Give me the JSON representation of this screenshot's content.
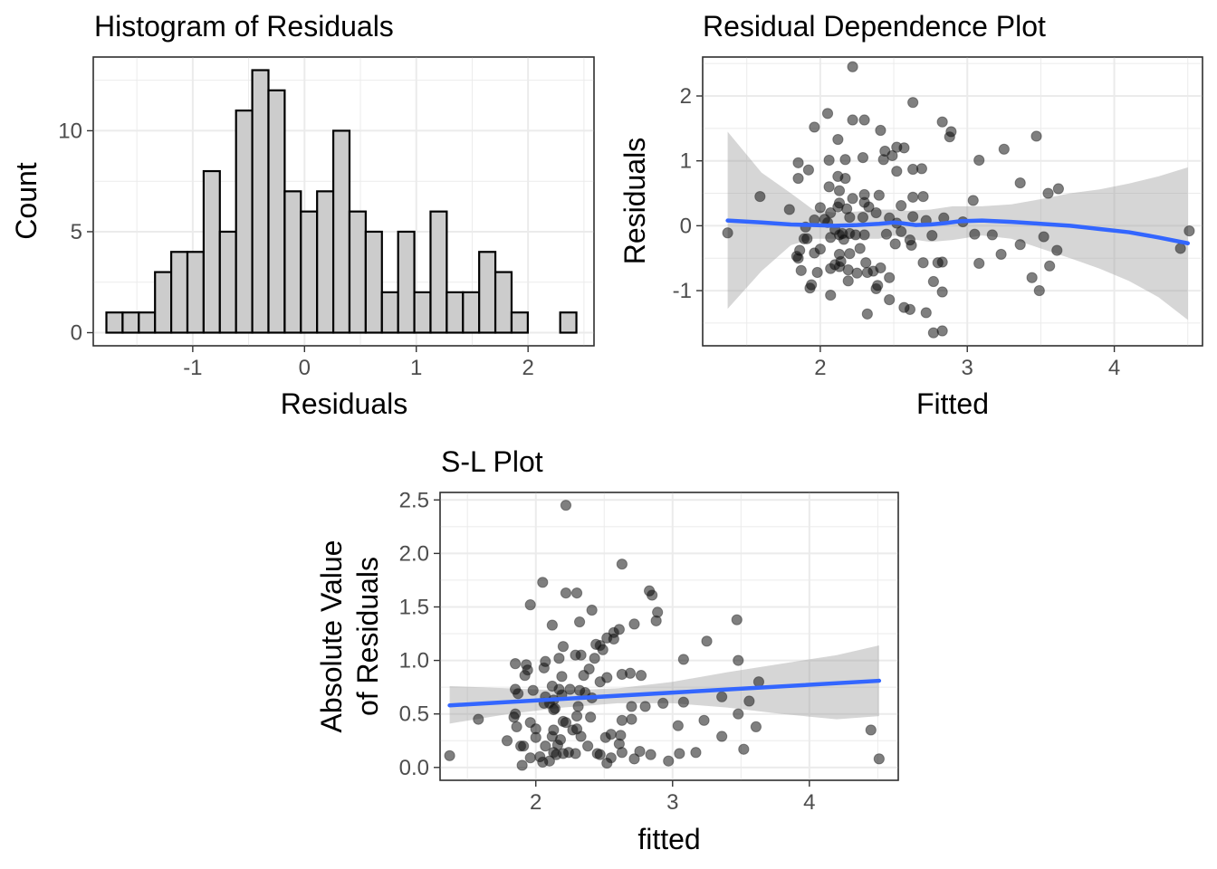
{
  "chart_data": [
    {
      "type": "bar",
      "title": "Histogram of Residuals",
      "xlabel": "Residuals",
      "ylabel": "Count",
      "xlim": [
        -1.89,
        2.59
      ],
      "ylim": [
        -0.65,
        13.65
      ],
      "xticks": [
        -1,
        0,
        1,
        2
      ],
      "yticks": [
        0,
        5,
        10
      ],
      "grid": true,
      "bin_width": 0.145,
      "bin_centers": [
        -1.7,
        -1.555,
        -1.41,
        -1.265,
        -1.12,
        -0.975,
        -0.83,
        -0.685,
        -0.54,
        -0.395,
        -0.25,
        -0.105,
        0.04,
        0.185,
        0.33,
        0.475,
        0.62,
        0.765,
        0.91,
        1.055,
        1.2,
        1.345,
        1.49,
        1.635,
        1.78,
        1.925,
        2.07,
        2.215,
        2.36
      ],
      "counts": [
        1,
        1,
        1,
        3,
        4,
        4,
        8,
        5,
        11,
        13,
        12,
        7,
        6,
        7,
        10,
        6,
        5,
        2,
        5,
        2,
        6,
        2,
        2,
        4,
        3,
        1,
        0,
        0,
        1
      ]
    },
    {
      "type": "scatter",
      "title": "Residual Dependence Plot",
      "xlabel": "Fitted",
      "ylabel": "Residuals",
      "xlim": [
        1.2,
        4.6
      ],
      "ylim": [
        -1.85,
        2.6
      ],
      "xticks": [
        2,
        3,
        4
      ],
      "yticks": [
        -1,
        0,
        1,
        2
      ],
      "grid": true,
      "points": [
        [
          2.22,
          2.45
        ],
        [
          2.63,
          1.9
        ],
        [
          2.05,
          1.73
        ],
        [
          2.83,
          1.6
        ],
        [
          2.22,
          1.63
        ],
        [
          2.3,
          1.63
        ],
        [
          1.96,
          1.52
        ],
        [
          2.89,
          1.45
        ],
        [
          2.88,
          1.37
        ],
        [
          2.12,
          1.33
        ],
        [
          2.41,
          1.47
        ],
        [
          3.47,
          1.38
        ],
        [
          2.52,
          1.21
        ],
        [
          2.57,
          1.2
        ],
        [
          2.49,
          1.08
        ],
        [
          3.25,
          1.18
        ],
        [
          2.44,
          1.15
        ],
        [
          2.17,
          1.02
        ],
        [
          2.06,
          1.01
        ],
        [
          2.29,
          1.05
        ],
        [
          1.85,
          0.97
        ],
        [
          2.63,
          0.87
        ],
        [
          1.92,
          0.86
        ],
        [
          2.43,
          1.02
        ],
        [
          3.08,
          1.01
        ],
        [
          2.52,
          0.84
        ],
        [
          2.69,
          0.88
        ],
        [
          2.12,
          0.76
        ],
        [
          2.17,
          0.73
        ],
        [
          1.85,
          0.73
        ],
        [
          3.36,
          0.66
        ],
        [
          2.06,
          0.6
        ],
        [
          3.62,
          0.57
        ],
        [
          2.13,
          0.54
        ],
        [
          2.3,
          0.48
        ],
        [
          3.55,
          0.5
        ],
        [
          1.59,
          0.45
        ],
        [
          2.4,
          0.47
        ],
        [
          2.63,
          0.44
        ],
        [
          2.7,
          0.45
        ],
        [
          2.22,
          0.42
        ],
        [
          2.13,
          0.35
        ],
        [
          3.04,
          0.39
        ],
        [
          2.3,
          0.36
        ],
        [
          2.33,
          0.29
        ],
        [
          2.55,
          0.31
        ],
        [
          2.12,
          0.29
        ],
        [
          2.18,
          0.26
        ],
        [
          2.0,
          0.28
        ],
        [
          1.79,
          0.25
        ],
        [
          2.07,
          0.2
        ],
        [
          2.38,
          0.2
        ],
        [
          2.29,
          0.13
        ],
        [
          2.2,
          0.13
        ],
        [
          2.47,
          0.12
        ],
        [
          2.97,
          0.06
        ],
        [
          2.63,
          0.14
        ],
        [
          2.72,
          0.08
        ],
        [
          1.96,
          0.09
        ],
        [
          2.03,
          0.1
        ],
        [
          2.84,
          0.12
        ],
        [
          2.05,
          0.05
        ],
        [
          2.52,
          0.04
        ],
        [
          1.9,
          -0.02
        ],
        [
          2.1,
          -0.06
        ],
        [
          2.55,
          -0.09
        ],
        [
          2.15,
          -0.12
        ],
        [
          2.24,
          -0.14
        ],
        [
          2.3,
          -0.14
        ],
        [
          3.17,
          -0.14
        ],
        [
          2.13,
          -0.14
        ],
        [
          3.52,
          -0.17
        ],
        [
          2.76,
          -0.15
        ],
        [
          3.05,
          -0.13
        ],
        [
          2.45,
          -0.13
        ],
        [
          2.2,
          -0.12
        ],
        [
          1.91,
          -0.2
        ],
        [
          2.07,
          -0.18
        ],
        [
          2.16,
          -0.21
        ],
        [
          1.89,
          -0.2
        ],
        [
          2.61,
          -0.22
        ],
        [
          2.51,
          -0.28
        ],
        [
          3.36,
          -0.29
        ],
        [
          2.62,
          -0.3
        ],
        [
          3.61,
          -0.38
        ],
        [
          4.45,
          -0.35
        ],
        [
          4.51,
          -0.08
        ],
        [
          1.37,
          -0.11
        ],
        [
          1.86,
          -0.38
        ],
        [
          2.0,
          -0.36
        ],
        [
          1.96,
          -0.42
        ],
        [
          2.27,
          -0.35
        ],
        [
          2.2,
          -0.43
        ],
        [
          3.23,
          -0.44
        ],
        [
          1.84,
          -0.47
        ],
        [
          2.13,
          -0.44
        ],
        [
          1.85,
          -0.5
        ],
        [
          2.14,
          -0.55
        ],
        [
          2.1,
          -0.6
        ],
        [
          2.31,
          -0.57
        ],
        [
          2.7,
          -0.57
        ],
        [
          2.8,
          -0.57
        ],
        [
          2.83,
          -0.56
        ],
        [
          3.08,
          -0.58
        ],
        [
          3.56,
          -0.62
        ],
        [
          2.13,
          -0.63
        ],
        [
          1.98,
          -0.72
        ],
        [
          2.07,
          -0.66
        ],
        [
          2.25,
          -0.73
        ],
        [
          2.32,
          -0.72
        ],
        [
          2.41,
          -0.65
        ],
        [
          1.87,
          -0.69
        ],
        [
          2.19,
          -0.68
        ],
        [
          2.36,
          -0.7
        ],
        [
          2.47,
          -0.8
        ],
        [
          2.19,
          -0.85
        ],
        [
          1.94,
          -0.91
        ],
        [
          1.93,
          -0.96
        ],
        [
          2.39,
          -0.92
        ],
        [
          2.77,
          -0.86
        ],
        [
          2.38,
          -0.97
        ],
        [
          3.44,
          -0.8
        ],
        [
          3.49,
          -1.0
        ],
        [
          2.07,
          -1.07
        ],
        [
          2.83,
          -1.02
        ],
        [
          2.47,
          -1.14
        ],
        [
          2.57,
          -1.26
        ],
        [
          2.61,
          -1.29
        ],
        [
          2.72,
          -1.34
        ],
        [
          2.32,
          -1.36
        ],
        [
          2.83,
          -1.62
        ],
        [
          2.77,
          -1.65
        ]
      ],
      "smooth": [
        [
          1.37,
          0.08
        ],
        [
          1.6,
          0.05
        ],
        [
          1.8,
          0.02
        ],
        [
          1.95,
          0.01
        ],
        [
          2.1,
          0.0
        ],
        [
          2.25,
          0.01
        ],
        [
          2.4,
          0.03
        ],
        [
          2.45,
          0.04
        ],
        [
          2.5,
          0.05
        ],
        [
          2.55,
          0.04
        ],
        [
          2.65,
          0.01
        ],
        [
          2.75,
          0.02
        ],
        [
          2.85,
          0.04
        ],
        [
          2.95,
          0.07
        ],
        [
          3.1,
          0.08
        ],
        [
          3.3,
          0.06
        ],
        [
          3.5,
          0.03
        ],
        [
          3.7,
          0.0
        ],
        [
          3.9,
          -0.05
        ],
        [
          4.1,
          -0.1
        ],
        [
          4.3,
          -0.18
        ],
        [
          4.5,
          -0.27
        ]
      ],
      "smooth_band": [
        [
          1.37,
          -1.28,
          1.45
        ],
        [
          1.6,
          -0.7,
          0.82
        ],
        [
          1.8,
          -0.3,
          0.5
        ],
        [
          1.95,
          -0.2,
          0.25
        ],
        [
          2.1,
          -0.2,
          0.2
        ],
        [
          2.25,
          -0.2,
          0.22
        ],
        [
          2.4,
          -0.2,
          0.25
        ],
        [
          2.5,
          -0.15,
          0.25
        ],
        [
          2.6,
          -0.2,
          0.23
        ],
        [
          2.75,
          -0.25,
          0.25
        ],
        [
          2.9,
          -0.22,
          0.3
        ],
        [
          3.1,
          -0.15,
          0.3
        ],
        [
          3.3,
          -0.2,
          0.33
        ],
        [
          3.5,
          -0.35,
          0.41
        ],
        [
          3.7,
          -0.5,
          0.5
        ],
        [
          3.9,
          -0.66,
          0.56
        ],
        [
          4.1,
          -0.85,
          0.65
        ],
        [
          4.3,
          -1.1,
          0.76
        ],
        [
          4.5,
          -1.45,
          0.9
        ]
      ]
    },
    {
      "type": "scatter",
      "title": "S-L Plot",
      "xlabel": "fitted",
      "ylabel": [
        "Absolute Value",
        "of Residuals"
      ],
      "xlim": [
        1.3,
        4.65
      ],
      "ylim": [
        -0.12,
        2.57
      ],
      "xticks": [
        2,
        3,
        4
      ],
      "yticks": [
        0.0,
        0.5,
        1.0,
        1.5,
        2.0,
        2.5
      ],
      "ytick_labels": [
        "0.0",
        "0.5",
        "1.0",
        "1.5",
        "2.0",
        "2.5"
      ],
      "grid": true,
      "points": [
        [
          2.22,
          2.45
        ],
        [
          2.63,
          1.9
        ],
        [
          2.05,
          1.73
        ],
        [
          2.83,
          1.65
        ],
        [
          2.85,
          1.61
        ],
        [
          2.22,
          1.63
        ],
        [
          2.3,
          1.63
        ],
        [
          1.96,
          1.52
        ],
        [
          2.89,
          1.45
        ],
        [
          2.88,
          1.37
        ],
        [
          2.12,
          1.33
        ],
        [
          2.41,
          1.47
        ],
        [
          3.47,
          1.38
        ],
        [
          2.57,
          1.2
        ],
        [
          2.52,
          1.21
        ],
        [
          2.2,
          1.13
        ],
        [
          2.49,
          1.1
        ],
        [
          3.25,
          1.18
        ],
        [
          2.44,
          1.15
        ],
        [
          2.07,
          0.99
        ],
        [
          2.17,
          1.02
        ],
        [
          2.06,
          0.93
        ],
        [
          2.29,
          1.05
        ],
        [
          1.85,
          0.97
        ],
        [
          2.33,
          1.05
        ],
        [
          2.63,
          0.87
        ],
        [
          1.92,
          0.86
        ],
        [
          2.43,
          1.02
        ],
        [
          3.08,
          1.01
        ],
        [
          3.48,
          1.0
        ],
        [
          2.52,
          0.84
        ],
        [
          2.69,
          0.88
        ],
        [
          2.12,
          0.76
        ],
        [
          2.17,
          0.73
        ],
        [
          1.85,
          0.73
        ],
        [
          3.36,
          0.66
        ],
        [
          3.63,
          0.8
        ],
        [
          2.06,
          0.6
        ],
        [
          2.13,
          0.54
        ],
        [
          2.3,
          0.48
        ],
        [
          2.35,
          0.86
        ],
        [
          2.4,
          0.47
        ],
        [
          2.63,
          0.44
        ],
        [
          2.7,
          0.45
        ],
        [
          2.22,
          0.42
        ],
        [
          2.13,
          0.35
        ],
        [
          3.04,
          0.39
        ],
        [
          2.3,
          0.36
        ],
        [
          2.33,
          0.29
        ],
        [
          2.55,
          0.31
        ],
        [
          2.12,
          0.29
        ],
        [
          2.18,
          0.26
        ],
        [
          2.0,
          0.28
        ],
        [
          1.79,
          0.25
        ],
        [
          2.07,
          0.2
        ],
        [
          2.38,
          0.2
        ],
        [
          2.29,
          0.13
        ],
        [
          2.2,
          0.13
        ],
        [
          2.47,
          0.12
        ],
        [
          2.97,
          0.06
        ],
        [
          2.63,
          0.14
        ],
        [
          2.72,
          0.08
        ],
        [
          1.96,
          0.09
        ],
        [
          2.03,
          0.1
        ],
        [
          2.84,
          0.12
        ],
        [
          2.05,
          0.05
        ],
        [
          2.52,
          0.04
        ],
        [
          1.9,
          0.02
        ],
        [
          2.1,
          0.06
        ],
        [
          2.55,
          0.09
        ],
        [
          2.15,
          0.12
        ],
        [
          2.24,
          0.14
        ],
        [
          3.17,
          0.14
        ],
        [
          2.13,
          0.14
        ],
        [
          3.52,
          0.17
        ],
        [
          2.76,
          0.15
        ],
        [
          3.05,
          0.13
        ],
        [
          2.45,
          0.13
        ],
        [
          1.91,
          0.2
        ],
        [
          2.16,
          0.21
        ],
        [
          1.89,
          0.2
        ],
        [
          2.61,
          0.22
        ],
        [
          2.51,
          0.28
        ],
        [
          3.36,
          0.29
        ],
        [
          2.62,
          0.3
        ],
        [
          3.61,
          0.38
        ],
        [
          4.45,
          0.35
        ],
        [
          4.51,
          0.08
        ],
        [
          1.37,
          0.11
        ],
        [
          1.86,
          0.38
        ],
        [
          2.0,
          0.36
        ],
        [
          1.96,
          0.42
        ],
        [
          2.27,
          0.35
        ],
        [
          2.2,
          0.43
        ],
        [
          3.23,
          0.44
        ],
        [
          1.84,
          0.47
        ],
        [
          1.58,
          0.45
        ],
        [
          1.85,
          0.5
        ],
        [
          2.14,
          0.55
        ],
        [
          2.1,
          0.6
        ],
        [
          2.31,
          0.57
        ],
        [
          2.7,
          0.57
        ],
        [
          2.8,
          0.57
        ],
        [
          2.93,
          0.6
        ],
        [
          3.08,
          0.61
        ],
        [
          3.56,
          0.62
        ],
        [
          2.13,
          0.63
        ],
        [
          1.98,
          0.72
        ],
        [
          2.07,
          0.66
        ],
        [
          2.25,
          0.73
        ],
        [
          2.32,
          0.72
        ],
        [
          2.41,
          0.65
        ],
        [
          1.87,
          0.69
        ],
        [
          2.19,
          0.68
        ],
        [
          2.36,
          0.7
        ],
        [
          2.47,
          0.8
        ],
        [
          2.19,
          0.85
        ],
        [
          1.94,
          0.91
        ],
        [
          1.93,
          0.96
        ],
        [
          2.39,
          0.92
        ],
        [
          2.77,
          0.86
        ],
        [
          3.48,
          0.5
        ],
        [
          2.47,
          1.14
        ],
        [
          2.32,
          1.36
        ],
        [
          2.61,
          1.29
        ],
        [
          2.72,
          1.34
        ],
        [
          2.57,
          1.26
        ]
      ],
      "smooth": [
        [
          1.37,
          0.58
        ],
        [
          4.51,
          0.81
        ]
      ],
      "smooth_band": [
        [
          1.37,
          0.41,
          0.76
        ],
        [
          1.8,
          0.5,
          0.74
        ],
        [
          2.2,
          0.56,
          0.72
        ],
        [
          2.6,
          0.6,
          0.74
        ],
        [
          3.0,
          0.6,
          0.8
        ],
        [
          3.4,
          0.56,
          0.89
        ],
        [
          3.8,
          0.5,
          0.97
        ],
        [
          4.2,
          0.45,
          1.05
        ],
        [
          4.51,
          0.48,
          1.14
        ]
      ]
    }
  ]
}
